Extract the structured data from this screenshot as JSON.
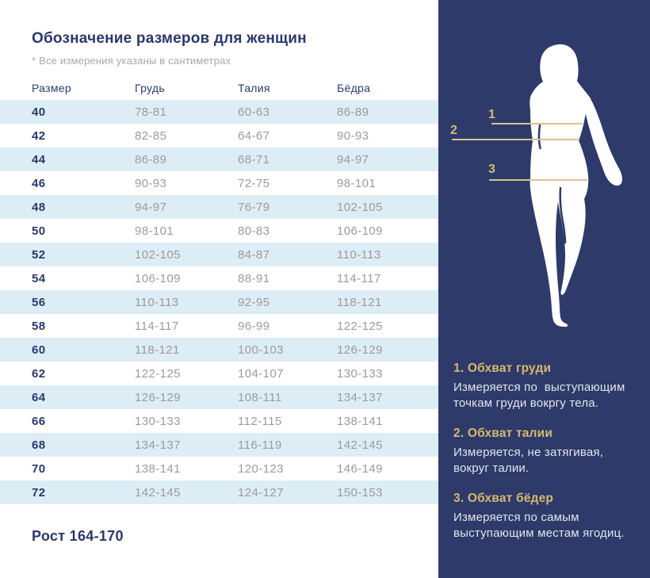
{
  "page": {
    "title": "Обозначение размеров для женщин",
    "note": "* Все измерения указаны в сантиметрах",
    "height_note": "Рост 164-170"
  },
  "table": {
    "columns": [
      "Размер",
      "Грудь",
      "Талия",
      "Бёдра"
    ],
    "rows": [
      [
        "40",
        "78-81",
        "60-63",
        "86-89"
      ],
      [
        "42",
        "82-85",
        "64-67",
        "90-93"
      ],
      [
        "44",
        "86-89",
        "68-71",
        "94-97"
      ],
      [
        "46",
        "90-93",
        "72-75",
        "98-101"
      ],
      [
        "48",
        "94-97",
        "76-79",
        "102-105"
      ],
      [
        "50",
        "98-101",
        "80-83",
        "106-109"
      ],
      [
        "52",
        "102-105",
        "84-87",
        "110-113"
      ],
      [
        "54",
        "106-109",
        "88-91",
        "114-117"
      ],
      [
        "56",
        "110-113",
        "92-95",
        "118-121"
      ],
      [
        "58",
        "114-117",
        "96-99",
        "122-125"
      ],
      [
        "60",
        "118-121",
        "100-103",
        "126-129"
      ],
      [
        "62",
        "122-125",
        "104-107",
        "130-133"
      ],
      [
        "64",
        "126-129",
        "108-111",
        "134-137"
      ],
      [
        "66",
        "130-133",
        "112-115",
        "138-141"
      ],
      [
        "68",
        "134-137",
        "116-119",
        "142-145"
      ],
      [
        "70",
        "138-141",
        "120-123",
        "146-149"
      ],
      [
        "72",
        "142-145",
        "124-127",
        "150-153"
      ]
    ]
  },
  "panel": {
    "markers": [
      {
        "num": "1",
        "name": "chest-line"
      },
      {
        "num": "2",
        "name": "waist-line"
      },
      {
        "num": "3",
        "name": "hips-line"
      }
    ],
    "sections": [
      {
        "heading": "1. Обхват груди",
        "text": "Измеряется по  выступающим\nточкам груди вокргу тела."
      },
      {
        "heading": "2. Обхват талии",
        "text": "Измеряется, не затягивая,\nвокруг талии."
      },
      {
        "heading": "3. Обхват бёдер",
        "text": "Измеряется по самым\nвыступающим местам ягодиц."
      }
    ]
  },
  "colors": {
    "panel_navy": "#2d3a6a",
    "accent_gold": "#d5bb76",
    "line_gold": "#d8c48e",
    "row_blue": "#ddedf5",
    "text_navy": "#2b386e",
    "text_gray": "#9b9b9b"
  }
}
